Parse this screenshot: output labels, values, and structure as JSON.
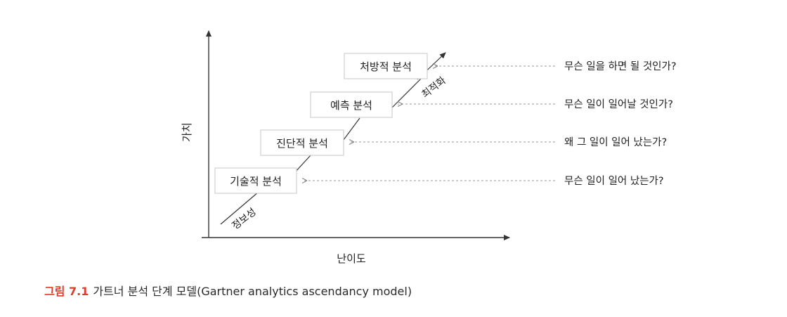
{
  "diagram": {
    "y_axis_label": "가치",
    "x_axis_label": "난이도",
    "lower_diagonal_label": "정보성",
    "upper_diagonal_label": "최적화",
    "stages": [
      {
        "label": "기술적 분석",
        "question": "무슨 일이 일어 났는가?"
      },
      {
        "label": "진단적 분석",
        "question": "왜 그 일이 일어 났는가?"
      },
      {
        "label": "예측 분석",
        "question": "무슨 일이 일어날 것인가?"
      },
      {
        "label": "처방적 분석",
        "question": "무슨 일을 하면 될 것인가?"
      }
    ],
    "colors": {
      "caption_number": "#e03a2a",
      "box_border": "#cfcfcf",
      "arrow": "#333333",
      "dashed_arrow": "#9a9a9a"
    }
  },
  "caption": {
    "number": "그림 7.1",
    "text": "가트너 분석 단계 모델(Gartner analytics ascendancy model)"
  }
}
